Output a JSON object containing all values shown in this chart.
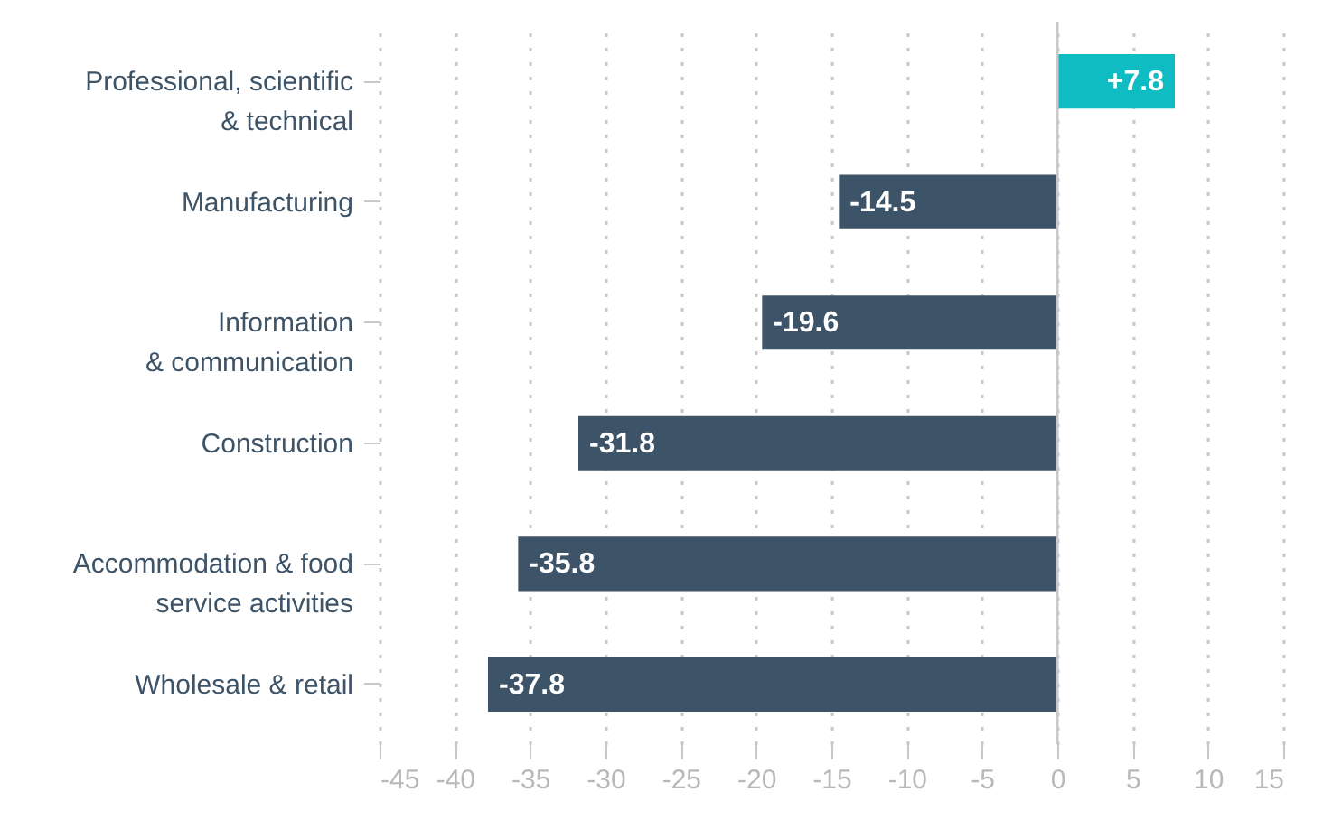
{
  "chart_data": {
    "type": "bar",
    "orientation": "horizontal",
    "categories": [
      "Professional, scientific\n& technical",
      "Manufacturing",
      "Information\n& communication",
      "Construction",
      "Accommodation & food\nservice activities",
      "Wholesale & retail"
    ],
    "values": [
      7.8,
      -14.5,
      -19.6,
      -31.8,
      -35.8,
      -37.8
    ],
    "colors": [
      "#0fbcc2",
      "#3d5367",
      "#3d5367",
      "#3d5367",
      "#3d5367",
      "#3d5367"
    ],
    "value_labels": [
      "+7.8",
      "-14.5",
      "-19.6",
      "-31.8",
      "-35.8",
      "-37.8"
    ],
    "xlim": [
      -45,
      15
    ],
    "xticks": [
      -45,
      -40,
      -35,
      -30,
      -25,
      -20,
      -15,
      -10,
      -5,
      0,
      5,
      10,
      15
    ],
    "grid": "x",
    "ref_lines": [
      {
        "axis": "x",
        "value": 0,
        "color": "#c8c8c8"
      }
    ]
  }
}
